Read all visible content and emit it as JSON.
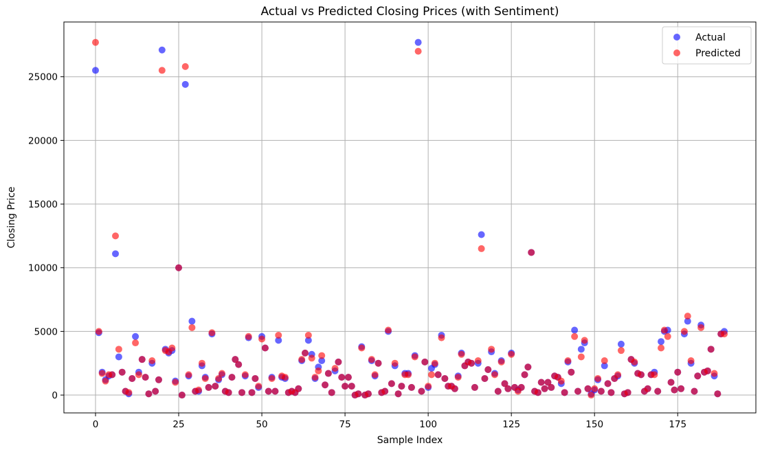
{
  "chart_data": {
    "type": "scatter",
    "title": "Actual vs Predicted Closing Prices (with Sentiment)",
    "xlabel": "Sample Index",
    "ylabel": "Closing Price",
    "xlim": [
      -9.5,
      198.5
    ],
    "ylim": [
      -1400,
      29300
    ],
    "xticks": [
      0,
      25,
      50,
      75,
      100,
      125,
      150,
      175
    ],
    "yticks": [
      0,
      5000,
      10000,
      15000,
      20000,
      25000
    ],
    "grid": true,
    "legend": "top-right",
    "series": [
      {
        "name": "Actual",
        "color": "#0000ff",
        "alpha": 0.6,
        "values": [
          25500,
          4900,
          1800,
          1200,
          1500,
          1600,
          11100,
          3000,
          1800,
          300,
          100,
          1300,
          4600,
          1800,
          2800,
          1400,
          100,
          2500,
          300,
          1200,
          27100,
          3600,
          3300,
          3500,
          1100,
          10000,
          0,
          24400,
          1500,
          5800,
          300,
          300,
          2300,
          1400,
          600,
          4800,
          700,
          1200,
          1600,
          300,
          200,
          1400,
          2800,
          2400,
          200,
          1500,
          4500,
          200,
          1300,
          600,
          4600,
          3700,
          300,
          1400,
          300,
          4300,
          1400,
          1300,
          200,
          300,
          200,
          500,
          2700,
          3300,
          4300,
          3200,
          1300,
          2200,
          2700,
          800,
          1700,
          200,
          1900,
          2600,
          1400,
          700,
          1400,
          700,
          0,
          100,
          3800,
          0,
          100,
          2700,
          1500,
          2500,
          200,
          300,
          5000,
          900,
          2300,
          100,
          700,
          1700,
          1700,
          600,
          3100,
          27700,
          300,
          2600,
          600,
          2100,
          2400,
          1600,
          4700,
          1300,
          700,
          700,
          500,
          1500,
          3300,
          2300,
          2600,
          2500,
          600,
          2500,
          12600,
          1300,
          2000,
          3400,
          1700,
          300,
          2700,
          900,
          500,
          3300,
          600,
          400,
          600,
          1600,
          2200,
          11200,
          300,
          200,
          1000,
          500,
          1000,
          600,
          1500,
          1400,
          900,
          200,
          2600,
          1800,
          5100,
          300,
          3600,
          4100,
          500,
          100,
          400,
          1200,
          300,
          2300,
          900,
          200,
          1300,
          1500,
          4000,
          100,
          200,
          2800,
          2500,
          1700,
          1600,
          300,
          500,
          1600,
          1800,
          300,
          4200,
          5000,
          5100,
          1000,
          400,
          1800,
          500,
          4800,
          5800,
          2500,
          300,
          1500,
          5500,
          1800,
          1900,
          3600,
          1500,
          100,
          4800,
          5000
        ]
      },
      {
        "name": "Predicted",
        "color": "#ff0000",
        "alpha": 0.6,
        "values": [
          27700,
          5000,
          1700,
          1100,
          1600,
          1600,
          12500,
          3600,
          1800,
          300,
          200,
          1300,
          4100,
          1600,
          2800,
          1400,
          100,
          2700,
          300,
          1200,
          25500,
          3500,
          3400,
          3700,
          1000,
          10000,
          0,
          25800,
          1600,
          5300,
          300,
          400,
          2500,
          1300,
          600,
          4900,
          700,
          1300,
          1700,
          300,
          200,
          1400,
          2800,
          2400,
          200,
          1600,
          4600,
          200,
          1300,
          700,
          4400,
          3700,
          300,
          1300,
          300,
          4700,
          1500,
          1400,
          200,
          300,
          200,
          500,
          2800,
          3300,
          4700,
          2900,
          1400,
          1900,
          3100,
          800,
          1700,
          200,
          2100,
          2600,
          1400,
          700,
          1400,
          700,
          0,
          100,
          3700,
          0,
          100,
          2800,
          1600,
          2500,
          200,
          300,
          5100,
          900,
          2500,
          100,
          700,
          1600,
          1600,
          600,
          3000,
          27000,
          300,
          2600,
          700,
          1600,
          2500,
          1600,
          4500,
          1300,
          700,
          700,
          500,
          1400,
          3200,
          2300,
          2600,
          2500,
          600,
          2700,
          11500,
          1300,
          2000,
          3600,
          1600,
          300,
          2600,
          900,
          500,
          3200,
          600,
          300,
          600,
          1600,
          2200,
          11200,
          300,
          200,
          1000,
          500,
          1000,
          600,
          1500,
          1400,
          1100,
          200,
          2700,
          1800,
          4600,
          300,
          3000,
          4300,
          500,
          0,
          500,
          1300,
          300,
          2700,
          900,
          200,
          1300,
          1600,
          3500,
          100,
          200,
          2800,
          2600,
          1700,
          1600,
          300,
          500,
          1600,
          1600,
          300,
          3700,
          5100,
          4600,
          1000,
          400,
          1800,
          500,
          5000,
          6200,
          2700,
          300,
          1500,
          5300,
          1800,
          1900,
          3600,
          1700,
          100,
          4800,
          4800
        ]
      }
    ]
  }
}
